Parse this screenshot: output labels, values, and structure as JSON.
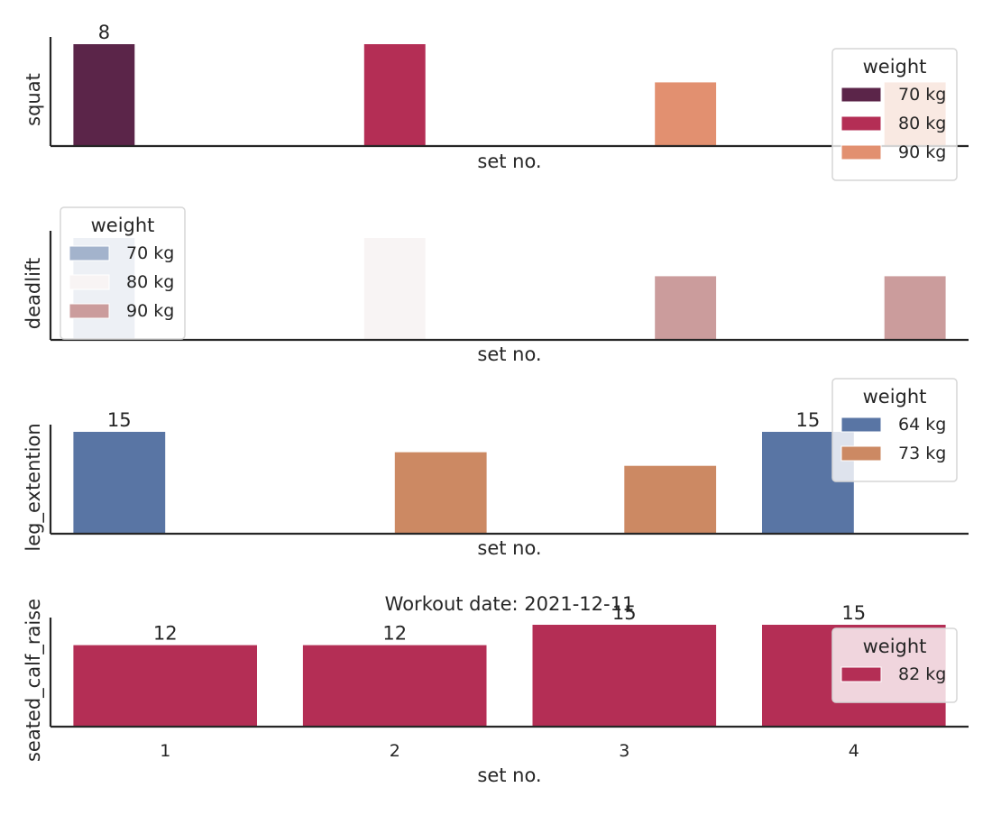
{
  "chart_data": [
    {
      "type": "bar",
      "ylabel": "squat",
      "xlabel": "set no.",
      "categories": [
        "1",
        "2",
        "3",
        "4"
      ],
      "ylim": [
        0,
        8
      ],
      "show_xticks": false,
      "title": "",
      "legend": {
        "title": "weight",
        "placement": "top-right",
        "entries": [
          {
            "name": "70 kg",
            "color": "#5b2549"
          },
          {
            "name": "80 kg",
            "color": "#b42e55"
          },
          {
            "name": "90 kg",
            "color": "#e29070"
          }
        ]
      },
      "bars": [
        {
          "x": "1",
          "hue": "70 kg",
          "value": 8,
          "label": "8",
          "color": "#5b2549"
        },
        {
          "x": "2",
          "hue": "80 kg",
          "value": 8,
          "label": "",
          "color": "#b42e55"
        },
        {
          "x": "3",
          "hue": "90 kg",
          "value": 5,
          "label": "",
          "color": "#e29070"
        },
        {
          "x": "4",
          "hue": "90 kg",
          "value": 5,
          "label": "",
          "color": "#e29070"
        }
      ],
      "hue_order": [
        "70 kg",
        "80 kg",
        "90 kg"
      ]
    },
    {
      "type": "bar",
      "ylabel": "deadlift",
      "xlabel": "set no.",
      "categories": [
        "1",
        "2",
        "3",
        "4"
      ],
      "ylim": [
        0,
        8
      ],
      "show_xticks": false,
      "title": "",
      "legend": {
        "title": "weight",
        "placement": "top-left",
        "entries": [
          {
            "name": "70 kg",
            "color": "#a3b3cc"
          },
          {
            "name": "80 kg",
            "color": "#f8f4f4"
          },
          {
            "name": "90 kg",
            "color": "#cb9c9c"
          }
        ]
      },
      "bars": [
        {
          "x": "1",
          "hue": "70 kg",
          "value": 8,
          "label": "",
          "color": "#a3b3cc"
        },
        {
          "x": "2",
          "hue": "80 kg",
          "value": 8,
          "label": "",
          "color": "#f8f4f4"
        },
        {
          "x": "3",
          "hue": "90 kg",
          "value": 5,
          "label": "",
          "color": "#cb9c9c"
        },
        {
          "x": "4",
          "hue": "90 kg",
          "value": 5,
          "label": "",
          "color": "#cb9c9c"
        }
      ],
      "hue_order": [
        "70 kg",
        "80 kg",
        "90 kg"
      ]
    },
    {
      "type": "bar",
      "ylabel": "leg_extention",
      "xlabel": "set no.",
      "categories": [
        "1",
        "2",
        "3",
        "4"
      ],
      "ylim": [
        0,
        15
      ],
      "show_xticks": false,
      "title": "",
      "legend": {
        "title": "weight",
        "placement": "top-right",
        "entries": [
          {
            "name": "64 kg",
            "color": "#5975a4"
          },
          {
            "name": "73 kg",
            "color": "#cc8963"
          }
        ]
      },
      "bars": [
        {
          "x": "1",
          "hue": "64 kg",
          "value": 15,
          "label": "15",
          "color": "#5975a4"
        },
        {
          "x": "2",
          "hue": "73 kg",
          "value": 12,
          "label": "",
          "color": "#cc8963"
        },
        {
          "x": "3",
          "hue": "73 kg",
          "value": 10,
          "label": "",
          "color": "#cc8963"
        },
        {
          "x": "4",
          "hue": "64 kg",
          "value": 15,
          "label": "15",
          "color": "#5975a4"
        }
      ],
      "hue_order": [
        "64 kg",
        "73 kg"
      ]
    },
    {
      "type": "bar",
      "ylabel": "seated_calf_raise",
      "xlabel": "set no.",
      "categories": [
        "1",
        "2",
        "3",
        "4"
      ],
      "ylim": [
        0,
        15
      ],
      "show_xticks": true,
      "title": "Workout date: 2021-12-11",
      "legend": {
        "title": "weight",
        "placement": "right",
        "entries": [
          {
            "name": "82 kg",
            "color": "#b42e55"
          }
        ]
      },
      "bars": [
        {
          "x": "1",
          "hue": "82 kg",
          "value": 12,
          "label": "12",
          "color": "#b42e55"
        },
        {
          "x": "2",
          "hue": "82 kg",
          "value": 12,
          "label": "12",
          "color": "#b42e55"
        },
        {
          "x": "3",
          "hue": "82 kg",
          "value": 15,
          "label": "15",
          "color": "#b42e55"
        },
        {
          "x": "4",
          "hue": "82 kg",
          "value": 15,
          "label": "15",
          "color": "#b42e55"
        }
      ],
      "hue_order": [
        "82 kg"
      ]
    }
  ]
}
